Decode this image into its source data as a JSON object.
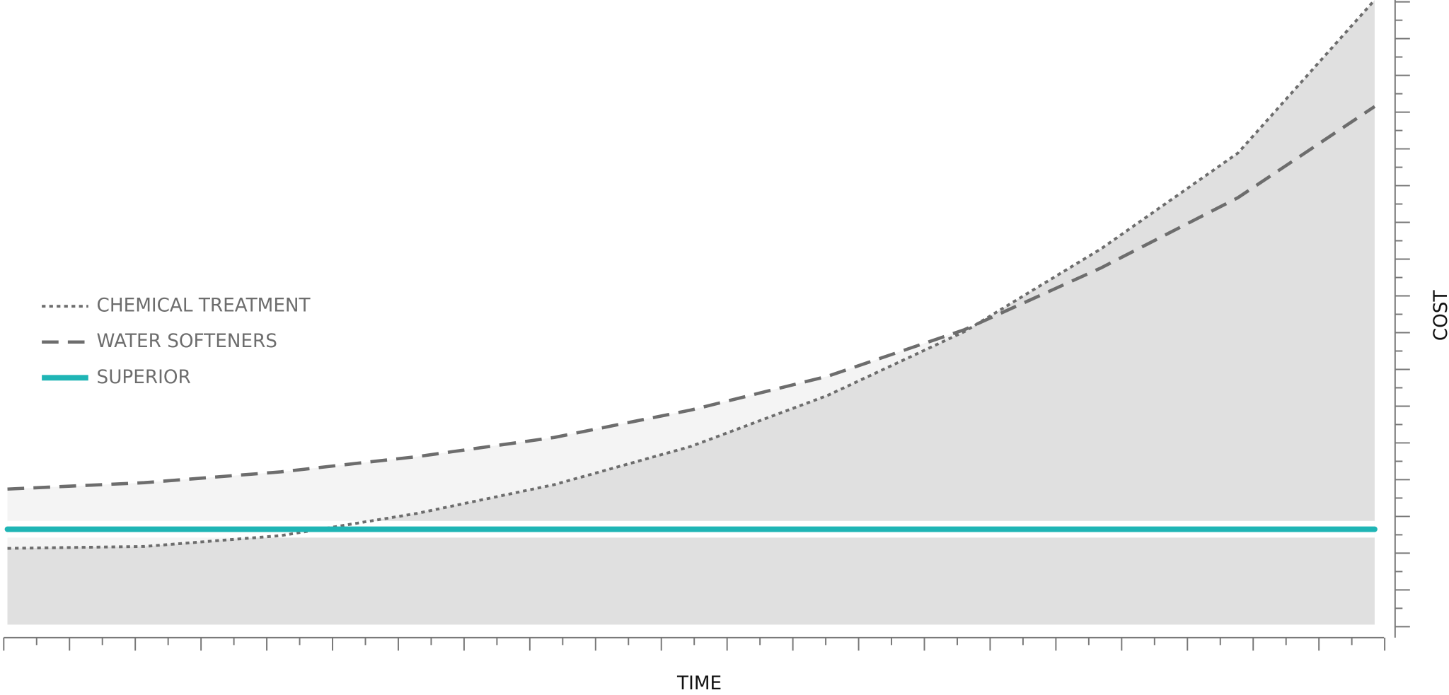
{
  "chart_data": {
    "type": "line",
    "x_label": "TIME",
    "y_label": "COST",
    "x": [
      0,
      10,
      20,
      30,
      40,
      50,
      60,
      70,
      80,
      90,
      100
    ],
    "xlim": [
      0,
      100
    ],
    "ylim": [
      0,
      100
    ],
    "legend": "left",
    "series": [
      {
        "name": "CHEMICAL TREATMENT",
        "color": "#6d6d6d",
        "style": "dotted",
        "fill": "#e0e0e0",
        "values": [
          14,
          14.3,
          16,
          19.5,
          24,
          30,
          38,
          48,
          61,
          76,
          100
        ]
      },
      {
        "name": "WATER SOFTENERS",
        "color": "#6d6d6d",
        "style": "dashed",
        "fill": "#f4f4f4",
        "values": [
          23.3,
          24.3,
          26,
          28.4,
          31.4,
          35.7,
          41,
          48.3,
          58,
          69,
          83.3
        ]
      },
      {
        "name": "SUPERIOR",
        "color": "#1fb5b5",
        "style": "solid",
        "values": [
          17,
          17,
          17,
          17,
          17,
          17,
          17,
          17,
          17,
          17,
          17
        ]
      }
    ]
  }
}
